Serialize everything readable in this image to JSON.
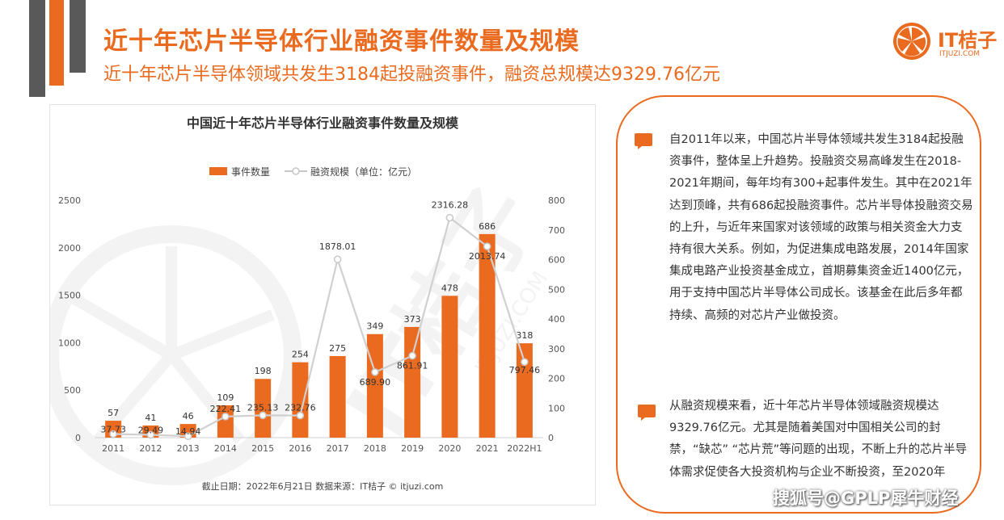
{
  "page": {
    "title": "近十年芯片半导体行业融资事件数量及规模",
    "subtitle": "近十年芯片半导体领域共发生3184起投融资事件，融资总规模达9329.76亿元",
    "logo": {
      "text": "IT桔子",
      "url": "ITJUZI.COM"
    },
    "watermark": "搜狐号@GPLP犀牛财经"
  },
  "colors": {
    "accent": "#ea6b1f",
    "bar": "#ea6b1f",
    "line": "#d0d0d0"
  },
  "chart_data": {
    "type": "bar",
    "title": "中国近十年芯片半导体行业融资事件数量及规模",
    "categories": [
      "2011",
      "2012",
      "2013",
      "2014",
      "2015",
      "2016",
      "2017",
      "2018",
      "2019",
      "2020",
      "2021",
      "2022H1"
    ],
    "series": [
      {
        "name": "事件数量",
        "type": "bar",
        "axis": "right",
        "values": [
          57,
          41,
          46,
          109,
          198,
          254,
          275,
          349,
          373,
          478,
          686,
          318
        ]
      },
      {
        "name": "融资规模（单位：亿元）",
        "type": "line",
        "axis": "left",
        "values": [
          37.73,
          29.49,
          14.94,
          222.41,
          235.13,
          232.76,
          1878.01,
          689.9,
          861.91,
          2316.28,
          2013.74,
          797.46
        ]
      }
    ],
    "value_labels": {
      "bar": [
        "57",
        "41",
        "46",
        "109",
        "198",
        "254",
        "275",
        "349",
        "373",
        "478",
        "686",
        "318"
      ],
      "line": [
        "37.73",
        "29.49",
        "14.94",
        "222.41",
        "235.13",
        "232.76",
        "1878.01",
        "689.90",
        "861.91",
        "2316.28",
        "2013.74",
        "797.46"
      ]
    },
    "left_axis": {
      "ylim": [
        0,
        2500
      ],
      "ticks": [
        "0",
        "500",
        "1000",
        "1500",
        "2000",
        "2500"
      ]
    },
    "right_axis": {
      "ylim": [
        0,
        800
      ],
      "ticks": [
        "0",
        "100",
        "200",
        "300",
        "400",
        "500",
        "600",
        "700",
        "800"
      ]
    },
    "legend": {
      "position": "top",
      "items": [
        "事件数量",
        "融资规模（单位：亿元）"
      ]
    },
    "grid": false,
    "footnote": "截止日期：2022年6月21日    数据来源：IT桔子 © itjuzi.com",
    "chart_watermark": "IT桔子",
    "chart_watermark_url": "ITJUZI.COM"
  },
  "commentary": {
    "para1": "自2011年以来，中国芯片半导体领域共发生3184起投融资事件，整体呈上升趋势。投融资交易高峰发生在2018-2021年期间，每年均有300+起事件发生。其中在2021年达到顶峰，共有686起投融资事件。芯片半导体投融资交易的上升，与近年来国家对该领域的政策与相关资金大力支持有很大关系。例如，为促进集成电路发展，2014年国家集成电路产业投资基金成立，首期募集资金近1400亿元，用于支持中国芯片半导体公司成长。该基金在此后多年都持续、高频的对芯片产业做投资。",
    "para2": "从融资规模来看，近十年芯片半导体领域融资规模达9329.76亿元。尤其是随着美国对中国相关公司的封禁，“缺芯” “芯片荒”等问题的出现，不断上升的芯片半导体需求促使各大投资机构与企业不断投资，至2020年"
  }
}
